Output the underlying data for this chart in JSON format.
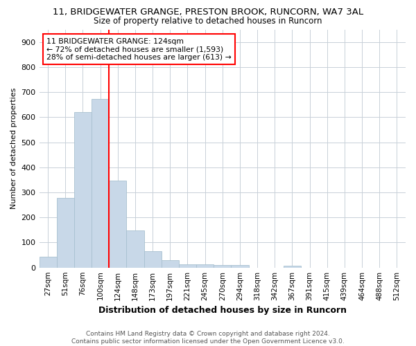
{
  "title1": "11, BRIDGEWATER GRANGE, PRESTON BROOK, RUNCORN, WA7 3AL",
  "title2": "Size of property relative to detached houses in Runcorn",
  "xlabel": "Distribution of detached houses by size in Runcorn",
  "ylabel": "Number of detached properties",
  "footer": "Contains HM Land Registry data © Crown copyright and database right 2024.\nContains public sector information licensed under the Open Government Licence v3.0.",
  "bar_labels": [
    "27sqm",
    "51sqm",
    "76sqm",
    "100sqm",
    "124sqm",
    "148sqm",
    "173sqm",
    "197sqm",
    "221sqm",
    "245sqm",
    "270sqm",
    "294sqm",
    "318sqm",
    "342sqm",
    "367sqm",
    "391sqm",
    "415sqm",
    "439sqm",
    "464sqm",
    "488sqm",
    "512sqm"
  ],
  "bar_values": [
    44,
    278,
    620,
    672,
    347,
    147,
    65,
    30,
    13,
    12,
    10,
    10,
    0,
    0,
    8,
    0,
    0,
    0,
    0,
    0,
    0
  ],
  "bar_color": "#c8d8e8",
  "bar_edgecolor": "#a8c0d0",
  "red_line_index": 4,
  "annotation_title": "11 BRIDGEWATER GRANGE: 124sqm",
  "annotation_line2": "← 72% of detached houses are smaller (1,593)",
  "annotation_line3": "28% of semi-detached houses are larger (613) →",
  "ylim": [
    0,
    950
  ],
  "yticks": [
    0,
    100,
    200,
    300,
    400,
    500,
    600,
    700,
    800,
    900
  ],
  "background_color": "#ffffff",
  "grid_color": "#c8d0d8"
}
